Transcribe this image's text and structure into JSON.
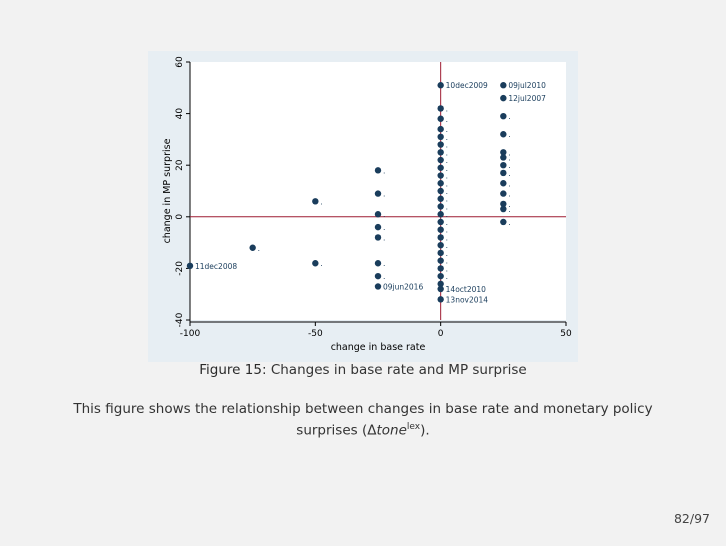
{
  "chart_data": {
    "type": "scatter",
    "title": "",
    "xlabel": "change in base rate",
    "ylabel": "change in MP surprise",
    "xlim": [
      -100,
      50
    ],
    "ylim": [
      -40,
      60
    ],
    "xticks": [
      -100,
      -50,
      0,
      50
    ],
    "yticks": [
      -40,
      -20,
      0,
      20,
      40,
      60
    ],
    "reference_lines": {
      "x": 0,
      "y": 0,
      "color": "#9e1b32"
    },
    "marker_color": "#1a3d5c",
    "points": [
      {
        "x": -100,
        "y": -19,
        "label": "11dec2008"
      },
      {
        "x": -75,
        "y": -12,
        "label": ""
      },
      {
        "x": -50,
        "y": 6,
        "label": ""
      },
      {
        "x": -50,
        "y": -18,
        "label": ""
      },
      {
        "x": -25,
        "y": 18,
        "label": ""
      },
      {
        "x": -25,
        "y": 9,
        "label": ""
      },
      {
        "x": -25,
        "y": 1,
        "label": ""
      },
      {
        "x": -25,
        "y": -4,
        "label": ""
      },
      {
        "x": -25,
        "y": -8,
        "label": ""
      },
      {
        "x": -25,
        "y": -18,
        "label": ""
      },
      {
        "x": -25,
        "y": -23,
        "label": ""
      },
      {
        "x": -25,
        "y": -27,
        "label": "09jun2016"
      },
      {
        "x": 0,
        "y": 51,
        "label": "10dec2009"
      },
      {
        "x": 0,
        "y": 42,
        "label": ""
      },
      {
        "x": 0,
        "y": 38,
        "label": ""
      },
      {
        "x": 0,
        "y": 34,
        "label": ""
      },
      {
        "x": 0,
        "y": 31,
        "label": ""
      },
      {
        "x": 0,
        "y": 28,
        "label": ""
      },
      {
        "x": 0,
        "y": 25,
        "label": ""
      },
      {
        "x": 0,
        "y": 22,
        "label": ""
      },
      {
        "x": 0,
        "y": 19,
        "label": ""
      },
      {
        "x": 0,
        "y": 16,
        "label": ""
      },
      {
        "x": 0,
        "y": 13,
        "label": ""
      },
      {
        "x": 0,
        "y": 10,
        "label": ""
      },
      {
        "x": 0,
        "y": 7,
        "label": ""
      },
      {
        "x": 0,
        "y": 4,
        "label": ""
      },
      {
        "x": 0,
        "y": 1,
        "label": ""
      },
      {
        "x": 0,
        "y": -2,
        "label": ""
      },
      {
        "x": 0,
        "y": -5,
        "label": ""
      },
      {
        "x": 0,
        "y": -8,
        "label": ""
      },
      {
        "x": 0,
        "y": -11,
        "label": ""
      },
      {
        "x": 0,
        "y": -14,
        "label": ""
      },
      {
        "x": 0,
        "y": -17,
        "label": ""
      },
      {
        "x": 0,
        "y": -20,
        "label": ""
      },
      {
        "x": 0,
        "y": -23,
        "label": ""
      },
      {
        "x": 0,
        "y": -26,
        "label": ""
      },
      {
        "x": 0,
        "y": -28,
        "label": "14oct2010"
      },
      {
        "x": 0,
        "y": -32,
        "label": "13nov2014"
      },
      {
        "x": 25,
        "y": 51,
        "label": "09jul2010"
      },
      {
        "x": 25,
        "y": 46,
        "label": "12jul2007"
      },
      {
        "x": 25,
        "y": 39,
        "label": ""
      },
      {
        "x": 25,
        "y": 32,
        "label": ""
      },
      {
        "x": 25,
        "y": 25,
        "label": ""
      },
      {
        "x": 25,
        "y": 23,
        "label": ""
      },
      {
        "x": 25,
        "y": 20,
        "label": ""
      },
      {
        "x": 25,
        "y": 17,
        "label": ""
      },
      {
        "x": 25,
        "y": 13,
        "label": ""
      },
      {
        "x": 25,
        "y": 9,
        "label": ""
      },
      {
        "x": 25,
        "y": 5,
        "label": ""
      },
      {
        "x": 25,
        "y": 3,
        "label": ""
      },
      {
        "x": 25,
        "y": -2,
        "label": ""
      }
    ]
  },
  "caption": {
    "label": "Figure 15:",
    "text": "Changes in base rate and MP surprise"
  },
  "description": {
    "text": "This figure shows the relationship between changes in base rate and monetary policy surprises (",
    "delta": "Δ",
    "var": "tone",
    "sup": "lex",
    "end": ")."
  },
  "page": {
    "number": "82/97"
  }
}
